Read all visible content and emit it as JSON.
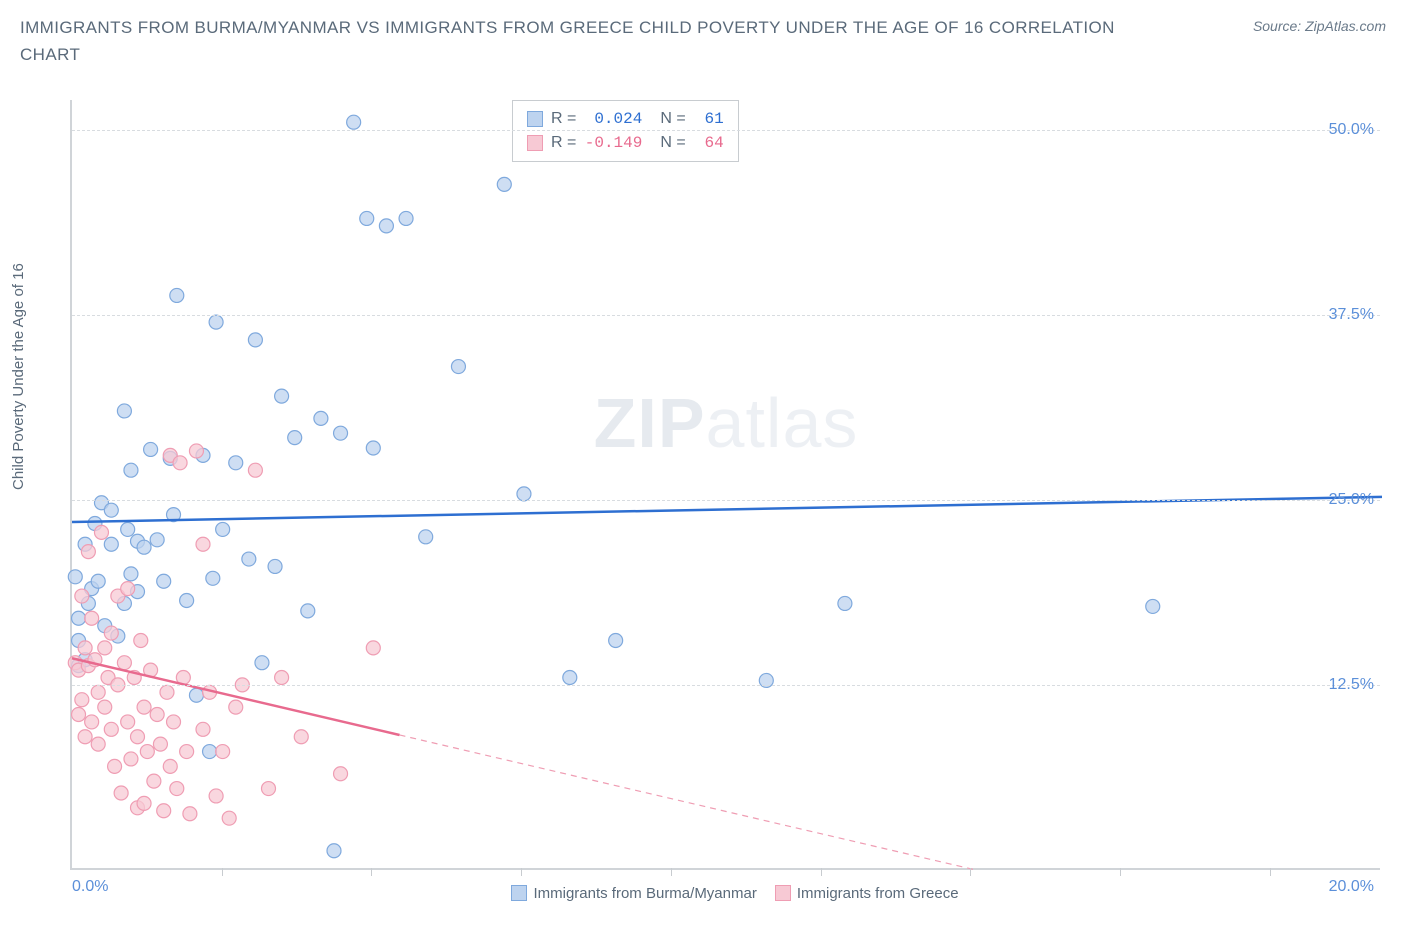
{
  "header": {
    "title": "IMMIGRANTS FROM BURMA/MYANMAR VS IMMIGRANTS FROM GREECE CHILD POVERTY UNDER THE AGE OF 16 CORRELATION CHART",
    "source_label": "Source: ZipAtlas.com"
  },
  "chart": {
    "type": "scatter",
    "y_axis_label": "Child Poverty Under the Age of 16",
    "xlim": [
      0,
      20
    ],
    "ylim": [
      0,
      52
    ],
    "x_ticks": [
      0,
      20
    ],
    "x_tick_labels": [
      "0.0%",
      "20.0%"
    ],
    "x_minor_ticks": [
      2.29,
      4.57,
      6.86,
      9.14,
      11.43,
      13.71,
      16.0,
      18.29
    ],
    "y_ticks": [
      12.5,
      25,
      37.5,
      50
    ],
    "y_tick_labels": [
      "12.5%",
      "25.0%",
      "37.5%",
      "50.0%"
    ],
    "grid_color": "#d8dce0",
    "axis_color": "#d0d4d8",
    "background_color": "#ffffff",
    "tick_label_color": "#5b8fd9",
    "watermark": "ZIPatlas",
    "series": [
      {
        "name": "Immigrants from Burma/Myanmar",
        "color_fill": "#bdd3ef",
        "color_stroke": "#7fa9dd",
        "line_color": "#2e6fd1",
        "marker_radius": 7,
        "marker_opacity": 0.75,
        "regression": {
          "x1": 0,
          "y1": 23.5,
          "x2": 20,
          "y2": 25.2,
          "solid_until_x": 20
        },
        "R": "0.024",
        "N": "61",
        "points": [
          [
            0.05,
            19.8
          ],
          [
            0.1,
            15.5
          ],
          [
            0.1,
            17.0
          ],
          [
            0.1,
            13.8
          ],
          [
            0.2,
            22.0
          ],
          [
            0.2,
            14.2
          ],
          [
            0.25,
            18.0
          ],
          [
            0.3,
            19.0
          ],
          [
            0.35,
            23.4
          ],
          [
            0.4,
            19.5
          ],
          [
            0.45,
            24.8
          ],
          [
            0.5,
            16.5
          ],
          [
            0.6,
            24.3
          ],
          [
            0.6,
            22.0
          ],
          [
            0.7,
            15.8
          ],
          [
            0.8,
            18.0
          ],
          [
            0.8,
            31.0
          ],
          [
            0.85,
            23.0
          ],
          [
            0.9,
            20.0
          ],
          [
            0.9,
            27.0
          ],
          [
            1.0,
            18.8
          ],
          [
            1.0,
            22.2
          ],
          [
            1.1,
            21.8
          ],
          [
            1.2,
            28.4
          ],
          [
            1.3,
            22.3
          ],
          [
            1.4,
            19.5
          ],
          [
            1.5,
            27.8
          ],
          [
            1.55,
            24.0
          ],
          [
            1.6,
            38.8
          ],
          [
            1.75,
            18.2
          ],
          [
            1.9,
            11.8
          ],
          [
            2.0,
            28.0
          ],
          [
            2.1,
            8.0
          ],
          [
            2.15,
            19.7
          ],
          [
            2.2,
            37.0
          ],
          [
            2.3,
            23.0
          ],
          [
            2.5,
            27.5
          ],
          [
            2.7,
            21.0
          ],
          [
            2.8,
            35.8
          ],
          [
            2.9,
            14.0
          ],
          [
            3.1,
            20.5
          ],
          [
            3.2,
            32.0
          ],
          [
            3.4,
            29.2
          ],
          [
            3.6,
            17.5
          ],
          [
            3.8,
            30.5
          ],
          [
            4.0,
            1.3
          ],
          [
            4.1,
            29.5
          ],
          [
            4.3,
            50.5
          ],
          [
            4.5,
            44.0
          ],
          [
            4.6,
            28.5
          ],
          [
            4.8,
            43.5
          ],
          [
            5.1,
            44.0
          ],
          [
            5.4,
            22.5
          ],
          [
            5.9,
            34.0
          ],
          [
            6.6,
            46.3
          ],
          [
            6.9,
            25.4
          ],
          [
            7.6,
            13.0
          ],
          [
            8.3,
            15.5
          ],
          [
            10.6,
            12.8
          ],
          [
            11.8,
            18.0
          ],
          [
            16.5,
            17.8
          ]
        ]
      },
      {
        "name": "Immigrants from Greece",
        "color_fill": "#f7c9d4",
        "color_stroke": "#ef9db3",
        "line_color": "#e86a8e",
        "marker_radius": 7,
        "marker_opacity": 0.75,
        "regression": {
          "x1": 0,
          "y1": 14.3,
          "x2": 13.8,
          "y2": 0,
          "solid_until_x": 5.0
        },
        "R": "-0.149",
        "N": "64",
        "points": [
          [
            0.05,
            14.0
          ],
          [
            0.1,
            10.5
          ],
          [
            0.1,
            13.5
          ],
          [
            0.15,
            18.5
          ],
          [
            0.15,
            11.5
          ],
          [
            0.2,
            9.0
          ],
          [
            0.2,
            15.0
          ],
          [
            0.25,
            21.5
          ],
          [
            0.25,
            13.8
          ],
          [
            0.3,
            10.0
          ],
          [
            0.3,
            17.0
          ],
          [
            0.35,
            14.2
          ],
          [
            0.4,
            12.0
          ],
          [
            0.4,
            8.5
          ],
          [
            0.45,
            22.8
          ],
          [
            0.5,
            15.0
          ],
          [
            0.5,
            11.0
          ],
          [
            0.55,
            13.0
          ],
          [
            0.6,
            9.5
          ],
          [
            0.6,
            16.0
          ],
          [
            0.65,
            7.0
          ],
          [
            0.7,
            18.5
          ],
          [
            0.7,
            12.5
          ],
          [
            0.75,
            5.2
          ],
          [
            0.8,
            14.0
          ],
          [
            0.85,
            10.0
          ],
          [
            0.85,
            19.0
          ],
          [
            0.9,
            7.5
          ],
          [
            0.95,
            13.0
          ],
          [
            1.0,
            4.2
          ],
          [
            1.0,
            9.0
          ],
          [
            1.05,
            15.5
          ],
          [
            1.1,
            11.0
          ],
          [
            1.1,
            4.5
          ],
          [
            1.15,
            8.0
          ],
          [
            1.2,
            13.5
          ],
          [
            1.25,
            6.0
          ],
          [
            1.3,
            10.5
          ],
          [
            1.35,
            8.5
          ],
          [
            1.4,
            4.0
          ],
          [
            1.45,
            12.0
          ],
          [
            1.5,
            28.0
          ],
          [
            1.5,
            7.0
          ],
          [
            1.55,
            10.0
          ],
          [
            1.6,
            5.5
          ],
          [
            1.65,
            27.5
          ],
          [
            1.7,
            13.0
          ],
          [
            1.75,
            8.0
          ],
          [
            1.8,
            3.8
          ],
          [
            1.9,
            28.3
          ],
          [
            2.0,
            22.0
          ],
          [
            2.0,
            9.5
          ],
          [
            2.1,
            12.0
          ],
          [
            2.2,
            5.0
          ],
          [
            2.3,
            8.0
          ],
          [
            2.4,
            3.5
          ],
          [
            2.5,
            11.0
          ],
          [
            2.6,
            12.5
          ],
          [
            2.8,
            27.0
          ],
          [
            3.0,
            5.5
          ],
          [
            3.2,
            13.0
          ],
          [
            3.5,
            9.0
          ],
          [
            4.1,
            6.5
          ],
          [
            4.6,
            15.0
          ]
        ]
      }
    ],
    "legend": {
      "items": [
        {
          "label": "Immigrants from Burma/Myanmar",
          "fill": "#bdd3ef",
          "stroke": "#7fa9dd"
        },
        {
          "label": "Immigrants from Greece",
          "fill": "#f7c9d4",
          "stroke": "#ef9db3"
        }
      ]
    },
    "stats_box": {
      "rows": [
        {
          "fill": "#bdd3ef",
          "stroke": "#7fa9dd",
          "r_label": "R =",
          "r_val": "0.024",
          "n_label": "N =",
          "n_val": "61",
          "val_color": "#2e6fd1"
        },
        {
          "fill": "#f7c9d4",
          "stroke": "#ef9db3",
          "r_label": "R =",
          "r_val": "-0.149",
          "n_label": "N =",
          "n_val": "64",
          "val_color": "#e86a8e"
        }
      ]
    }
  }
}
